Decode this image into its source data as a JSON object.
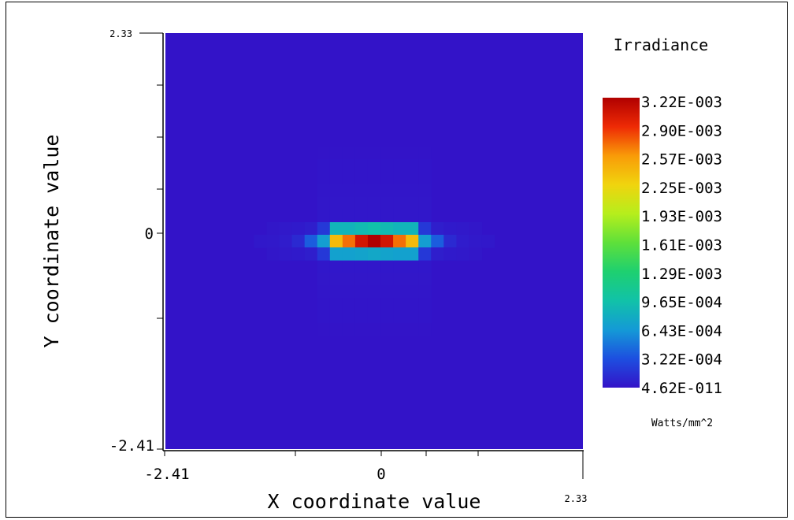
{
  "chart_data": {
    "type": "heatmap",
    "title": "Irradiance",
    "units": "Watts/mm^2",
    "xlabel": "X coordinate value",
    "ylabel": "Y coordinate value",
    "xlim": [
      -2.41,
      2.33
    ],
    "ylim": [
      -2.41,
      2.33
    ],
    "x_ticks": [
      "-2.41",
      "0",
      "2.33"
    ],
    "y_ticks": [
      "2.33",
      "0",
      "-2.41"
    ],
    "colorbar_labels": [
      "3.22E-003",
      "2.90E-003",
      "2.57E-003",
      "2.25E-003",
      "1.93E-003",
      "1.61E-003",
      "1.29E-003",
      "9.65E-004",
      "6.43E-004",
      "3.22E-004",
      "4.62E-011"
    ],
    "vmin": 4.62e-11,
    "vmax": 0.00322,
    "grid_size": 33,
    "center_index": 16,
    "center_row": [
      2.5e-05,
      3e-05,
      5e-05,
      0.00012,
      0.00038,
      0.00068,
      0.0024,
      0.0027,
      0.00305,
      0.00322,
      0.00305,
      0.0027,
      0.0024,
      0.00068,
      0.00038,
      0.00012,
      5e-05,
      3e-05,
      2.5e-05
    ],
    "row_above": [
      2e-05,
      3e-05,
      4e-05,
      6e-05,
      0.0002,
      0.00085,
      0.00085,
      0.0009,
      0.00095,
      0.0009,
      0.00085,
      0.00085,
      0.0002,
      6e-05,
      4e-05,
      3e-05,
      2e-05
    ],
    "row_below": [
      2e-05,
      3e-05,
      4e-05,
      6e-05,
      0.0002,
      0.0007,
      0.0007,
      0.00072,
      0.00075,
      0.00072,
      0.0007,
      0.0007,
      0.0002,
      6e-05,
      4e-05,
      3e-05,
      2e-05
    ],
    "background_value": 1e-05
  }
}
